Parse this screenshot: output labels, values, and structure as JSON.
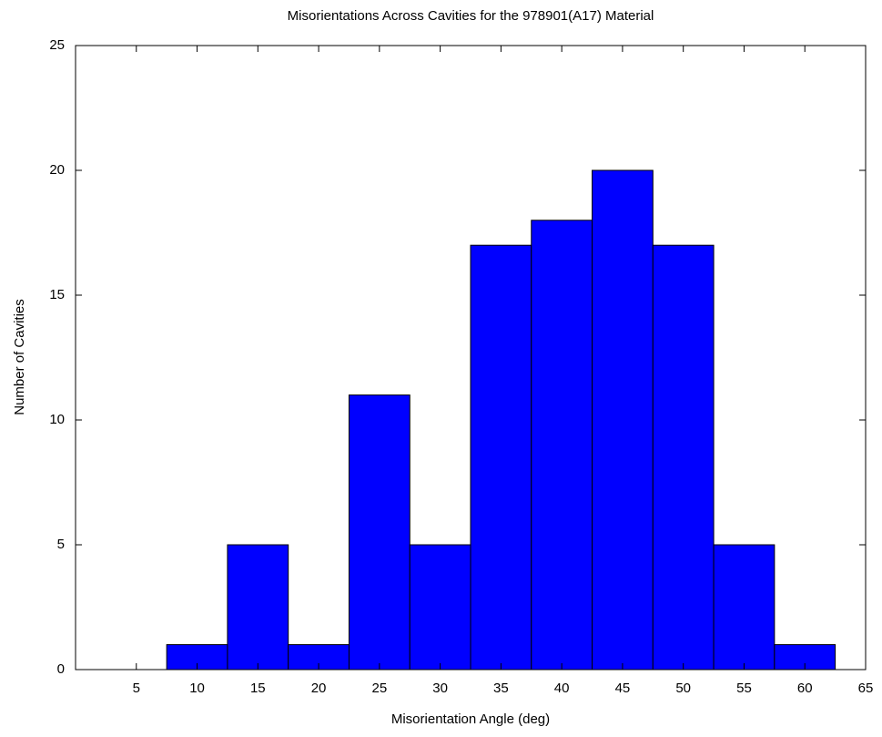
{
  "chart_data": {
    "type": "histogram",
    "title": "Misorientations Across Cavities for the 978901(A17) Material",
    "xlabel": "Misorientation Angle (deg)",
    "ylabel": "Number of Cavities",
    "bins": [
      7.5,
      12.5,
      17.5,
      22.5,
      27.5,
      32.5,
      37.5,
      42.5,
      47.5,
      52.5,
      57.5,
      62.5
    ],
    "counts": [
      1,
      5,
      1,
      11,
      5,
      17,
      18,
      20,
      17,
      5,
      1
    ],
    "color": "#0000ff",
    "xlim": [
      0,
      65
    ],
    "xticks": [
      5,
      10,
      15,
      20,
      25,
      30,
      35,
      40,
      45,
      50,
      55,
      60,
      65
    ],
    "ylim": [
      0,
      25
    ],
    "yticks": [
      0,
      5,
      10,
      15,
      20,
      25
    ]
  }
}
